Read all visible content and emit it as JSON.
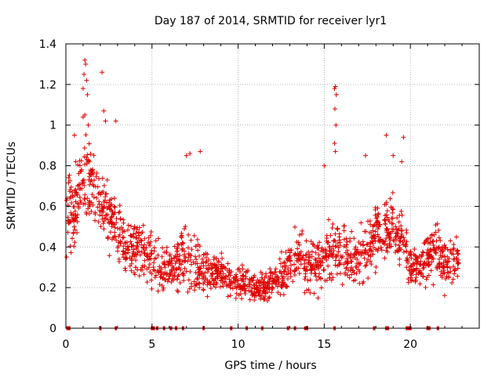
{
  "chart_data": {
    "type": "scatter",
    "title": "Day 187 of 2014, SRMTID for receiver lyr1",
    "xlabel": "GPS time / hours",
    "ylabel": "SRMTID / TECUs",
    "xlim": [
      0,
      24
    ],
    "ylim": [
      0,
      1.4
    ],
    "xticks": [
      0,
      5,
      10,
      15,
      20
    ],
    "yticks": [
      0,
      0.2,
      0.4,
      0.6,
      0.8,
      1,
      1.2,
      1.4
    ],
    "xtick_labels": [
      "0",
      "5",
      "10",
      "15",
      "20"
    ],
    "ytick_labels": [
      "0",
      "0.2",
      "0.4",
      "0.6",
      "0.8",
      "1",
      "1.2",
      "1.4"
    ],
    "grid": true,
    "marker": "+",
    "series_color": "#e00000",
    "envelope_hours": [
      0,
      0.5,
      1,
      1.5,
      2,
      2.5,
      3,
      3.5,
      4,
      4.5,
      5,
      5.5,
      6,
      6.5,
      7,
      7.5,
      8,
      8.5,
      9,
      9.5,
      10,
      10.5,
      11,
      11.5,
      12,
      12.5,
      13,
      13.5,
      14,
      14.5,
      15,
      15.5,
      16,
      16.5,
      17,
      17.5,
      18,
      18.5,
      19,
      19.5,
      20,
      20.5,
      21,
      21.5,
      22,
      22.5,
      22.8
    ],
    "envelope_center": [
      0.55,
      0.6,
      0.75,
      0.72,
      0.6,
      0.55,
      0.5,
      0.4,
      0.38,
      0.4,
      0.35,
      0.3,
      0.3,
      0.32,
      0.35,
      0.3,
      0.28,
      0.27,
      0.27,
      0.25,
      0.22,
      0.22,
      0.2,
      0.2,
      0.22,
      0.25,
      0.3,
      0.35,
      0.32,
      0.3,
      0.35,
      0.4,
      0.38,
      0.35,
      0.37,
      0.4,
      0.45,
      0.5,
      0.5,
      0.45,
      0.3,
      0.3,
      0.33,
      0.4,
      0.3,
      0.33,
      0.35
    ],
    "envelope_spread": [
      0.15,
      0.18,
      0.2,
      0.18,
      0.15,
      0.15,
      0.15,
      0.12,
      0.12,
      0.14,
      0.12,
      0.1,
      0.1,
      0.13,
      0.14,
      0.12,
      0.1,
      0.08,
      0.08,
      0.08,
      0.07,
      0.07,
      0.06,
      0.06,
      0.07,
      0.08,
      0.1,
      0.12,
      0.12,
      0.12,
      0.14,
      0.14,
      0.13,
      0.12,
      0.12,
      0.14,
      0.14,
      0.14,
      0.14,
      0.12,
      0.08,
      0.08,
      0.1,
      0.12,
      0.1,
      0.1,
      0.1
    ],
    "outliers": [
      [
        1.1,
        1.32
      ],
      [
        1.15,
        1.3
      ],
      [
        1.05,
        1.25
      ],
      [
        1.2,
        1.22
      ],
      [
        1.0,
        1.18
      ],
      [
        1.25,
        1.15
      ],
      [
        1.1,
        1.05
      ],
      [
        1.0,
        1.04
      ],
      [
        1.3,
        1.0
      ],
      [
        2.1,
        1.26
      ],
      [
        2.2,
        1.07
      ],
      [
        2.3,
        1.02
      ],
      [
        2.9,
        1.02
      ],
      [
        0.5,
        0.95
      ],
      [
        7.2,
        0.86
      ],
      [
        7.0,
        0.85
      ],
      [
        7.8,
        0.87
      ],
      [
        15.65,
        1.19
      ],
      [
        15.6,
        1.18
      ],
      [
        15.7,
        1.15
      ],
      [
        15.62,
        1.08
      ],
      [
        15.68,
        1.0
      ],
      [
        15.6,
        0.91
      ],
      [
        15.65,
        0.87
      ],
      [
        15.0,
        0.8
      ],
      [
        17.4,
        0.85
      ],
      [
        18.6,
        0.95
      ],
      [
        19.0,
        0.85
      ],
      [
        19.6,
        0.94
      ],
      [
        19.5,
        0.82
      ]
    ],
    "zero_marks": [
      0.1,
      0.2,
      2.0,
      2.9,
      5.0,
      5.1,
      5.3,
      5.7,
      6.1,
      6.4,
      6.8,
      8.0,
      9.6,
      10.5,
      11.4,
      12.9,
      13.3,
      13.9,
      14.0,
      15.6,
      17.9,
      18.6,
      18.7,
      19.8,
      19.9,
      20.0,
      21.0,
      21.1,
      21.6
    ]
  }
}
